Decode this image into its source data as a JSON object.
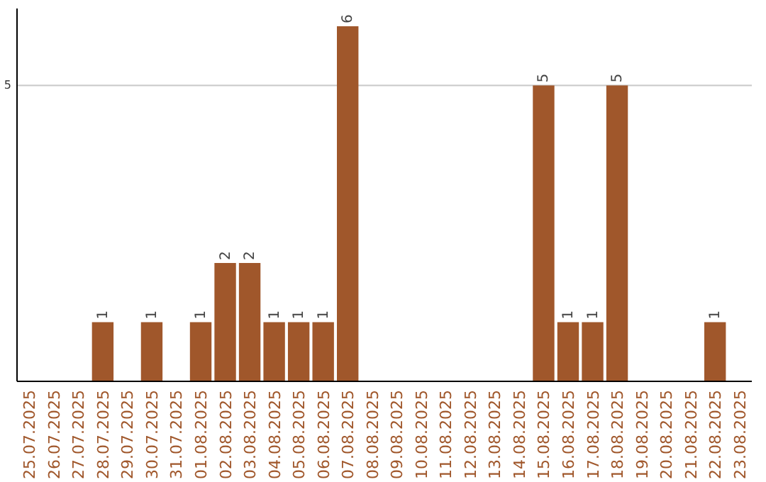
{
  "chart_data": {
    "type": "bar",
    "categories": [
      "25.07.2025",
      "26.07.2025",
      "27.07.2025",
      "28.07.2025",
      "29.07.2025",
      "30.07.2025",
      "31.07.2025",
      "01.08.2025",
      "02.08.2025",
      "03.08.2025",
      "04.08.2025",
      "05.08.2025",
      "06.08.2025",
      "07.08.2025",
      "08.08.2025",
      "09.08.2025",
      "10.08.2025",
      "11.08.2025",
      "12.08.2025",
      "13.08.2025",
      "14.08.2025",
      "15.08.2025",
      "16.08.2025",
      "17.08.2025",
      "18.08.2025",
      "19.08.2025",
      "20.08.2025",
      "21.08.2025",
      "22.08.2025",
      "23.08.2025"
    ],
    "values": [
      0,
      0,
      0,
      1,
      0,
      1,
      0,
      1,
      2,
      2,
      1,
      1,
      1,
      6,
      0,
      0,
      0,
      0,
      0,
      0,
      0,
      5,
      1,
      1,
      5,
      0,
      0,
      0,
      1,
      0
    ],
    "value_labels": [
      null,
      null,
      null,
      "1",
      null,
      "1",
      null,
      "1",
      "2",
      "2",
      "1",
      "1",
      "1",
      "6",
      null,
      null,
      null,
      null,
      null,
      null,
      null,
      "5",
      "1",
      "1",
      "5",
      null,
      null,
      null,
      "1",
      null
    ],
    "color": "#a0572b",
    "ylim": [
      0,
      6.3
    ],
    "yticks": [
      5
    ],
    "grid": "y"
  }
}
